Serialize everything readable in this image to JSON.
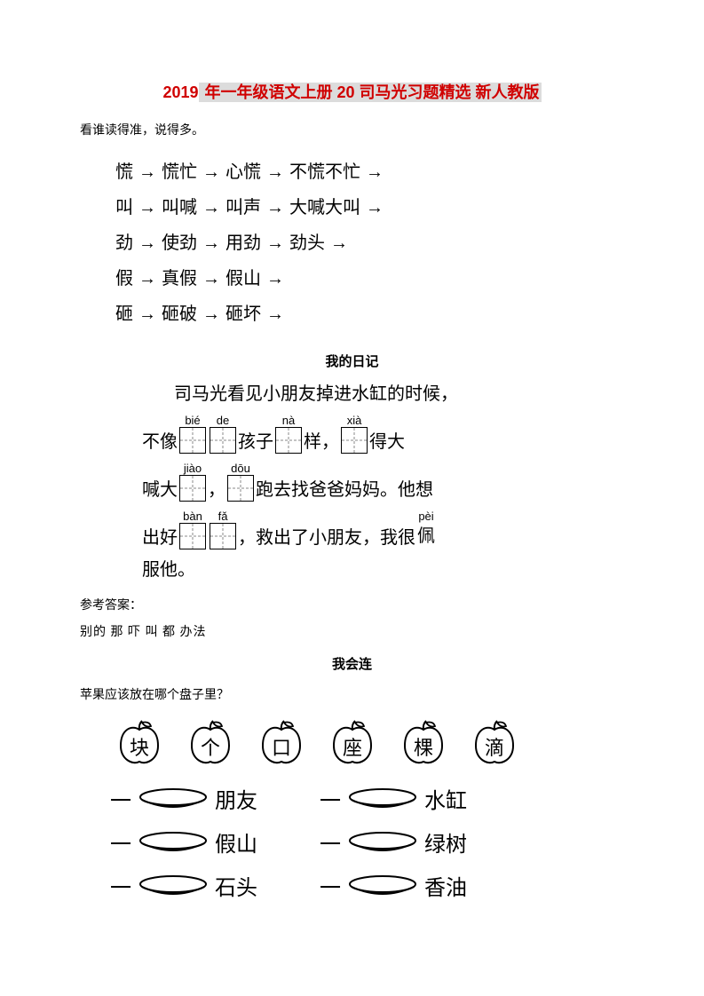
{
  "title": {
    "part1": "2019",
    "part2": " 年一年级语文上册 20 司马光习题精选 新人教版"
  },
  "instruction1": "看谁读得准，说得多。",
  "chains": [
    [
      "慌",
      "慌忙",
      "心慌",
      "不慌不忙"
    ],
    [
      "叫",
      "叫喊",
      "叫声",
      "大喊大叫"
    ],
    [
      "劲",
      "使劲",
      "用劲",
      "劲头"
    ],
    [
      "假",
      "真假",
      "假山"
    ],
    [
      "砸",
      "砸破",
      "砸坏"
    ]
  ],
  "section_diary_heading": "我的日记",
  "diary": {
    "line1_pre": "司马光看见小朋友掉进水缸的时候，",
    "line2": {
      "a": "不像",
      "box1_pinyin": "bié",
      "box2_pinyin": "de",
      "b": "孩子",
      "box3_pinyin": "nà",
      "c": "样，",
      "box4_pinyin": "xià",
      "d": "得大"
    },
    "line3": {
      "a": "喊大",
      "box1_pinyin": "jiào",
      "b": "，",
      "box2_pinyin": "dōu",
      "c": "跑去找爸爸妈妈。他想"
    },
    "line4": {
      "a": "出好",
      "box1_pinyin": "bàn",
      "box2_pinyin": "fǎ",
      "b": "，救出了小朋友，我很",
      "pei_pinyin": "pèi",
      "pei_char": "佩"
    },
    "line5": "服他。"
  },
  "answer_heading": "参考答案：",
  "answer_line": "别的 那 吓 叫 都 办法",
  "section_match_heading": "我会连",
  "instruction2": "苹果应该放在哪个盘子里？",
  "apples": [
    "块",
    "个",
    "口",
    "座",
    "棵",
    "滴"
  ],
  "plate_left": [
    "朋友",
    "假山",
    "石头"
  ],
  "plate_right": [
    "水缸",
    "绿树",
    "香油"
  ],
  "one_char": "一",
  "arrow": "→",
  "colors": {
    "title_red": "#d00000",
    "highlight_bg": "#dcdcdc",
    "text": "#000000",
    "background": "#ffffff"
  }
}
